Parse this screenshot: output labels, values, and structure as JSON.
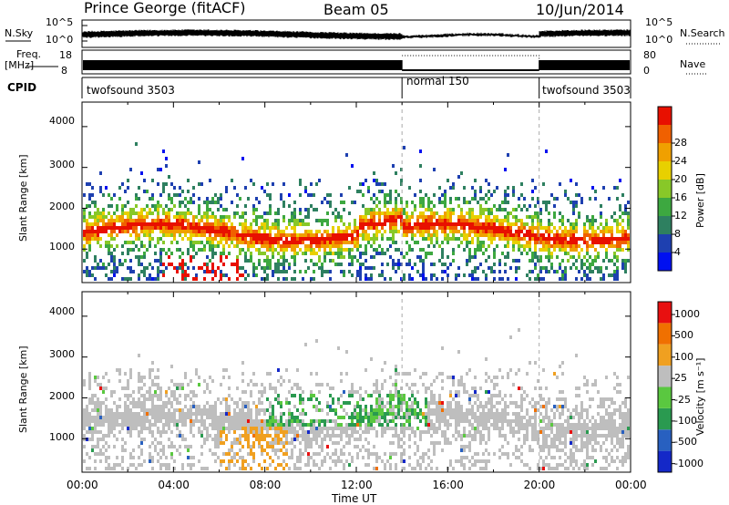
{
  "header": {
    "station": "Prince George (fitACF)",
    "beam": "Beam 05",
    "date": "10/Jun/2014"
  },
  "noise_panel": {
    "left_label": "N.Sky",
    "right_label": "N.Search",
    "tick_top": "10^5",
    "tick_bottom": "10^0"
  },
  "freq_panel": {
    "left_label_1": "Freq.",
    "left_label_2": "[MHz]",
    "left_tick_top": "18",
    "left_tick_bottom": "8",
    "right_label": "Nave",
    "right_tick_top": "80",
    "right_tick_bottom": "0"
  },
  "cpid_panel": {
    "label": "CPID",
    "segments": [
      {
        "name": "twofsound 3503",
        "start_hour": 0,
        "end_hour": 14
      },
      {
        "name": "normal 150",
        "start_hour": 14,
        "end_hour": 20
      },
      {
        "name": "twofsound 3503",
        "start_hour": 20,
        "end_hour": 24
      }
    ]
  },
  "chart_data": [
    {
      "type": "heatmap",
      "name": "Power",
      "ylabel": "Slant Range [km]",
      "xlim_hours": [
        0,
        24
      ],
      "ylim_km": [
        180,
        4600
      ],
      "yticks": [
        "1000",
        "2000",
        "3000",
        "4000"
      ],
      "colorbar_label": "Power [dB]",
      "colorbar_ticks": [
        "4",
        "8",
        "12",
        "16",
        "20",
        "24",
        "28"
      ],
      "colors": [
        "#0010f0",
        "#1e40b0",
        "#2e8060",
        "#3da840",
        "#88c828",
        "#e8d000",
        "#f0a000",
        "#f06000",
        "#e81000"
      ]
    },
    {
      "type": "heatmap",
      "name": "Velocity",
      "ylabel": "Slant Range [km]",
      "xlabel": "Time UT",
      "xlim_hours": [
        0,
        24
      ],
      "ylim_km": [
        180,
        4600
      ],
      "yticks": [
        "1000",
        "2000",
        "3000",
        "4000"
      ],
      "xticks": [
        "00:00",
        "04:00",
        "08:00",
        "12:00",
        "16:00",
        "20:00",
        "00:00"
      ],
      "colorbar_label": "Velocity [m s⁻¹]",
      "colorbar_ticks": [
        "1000",
        "500",
        "100",
        "25",
        "-25",
        "-100",
        "-500",
        "-1000"
      ],
      "colors": [
        "#1428c8",
        "#2860c0",
        "#2a9a50",
        "#5ac840",
        "#bebebe",
        "#f0a020",
        "#f07000",
        "#e81010"
      ]
    }
  ]
}
